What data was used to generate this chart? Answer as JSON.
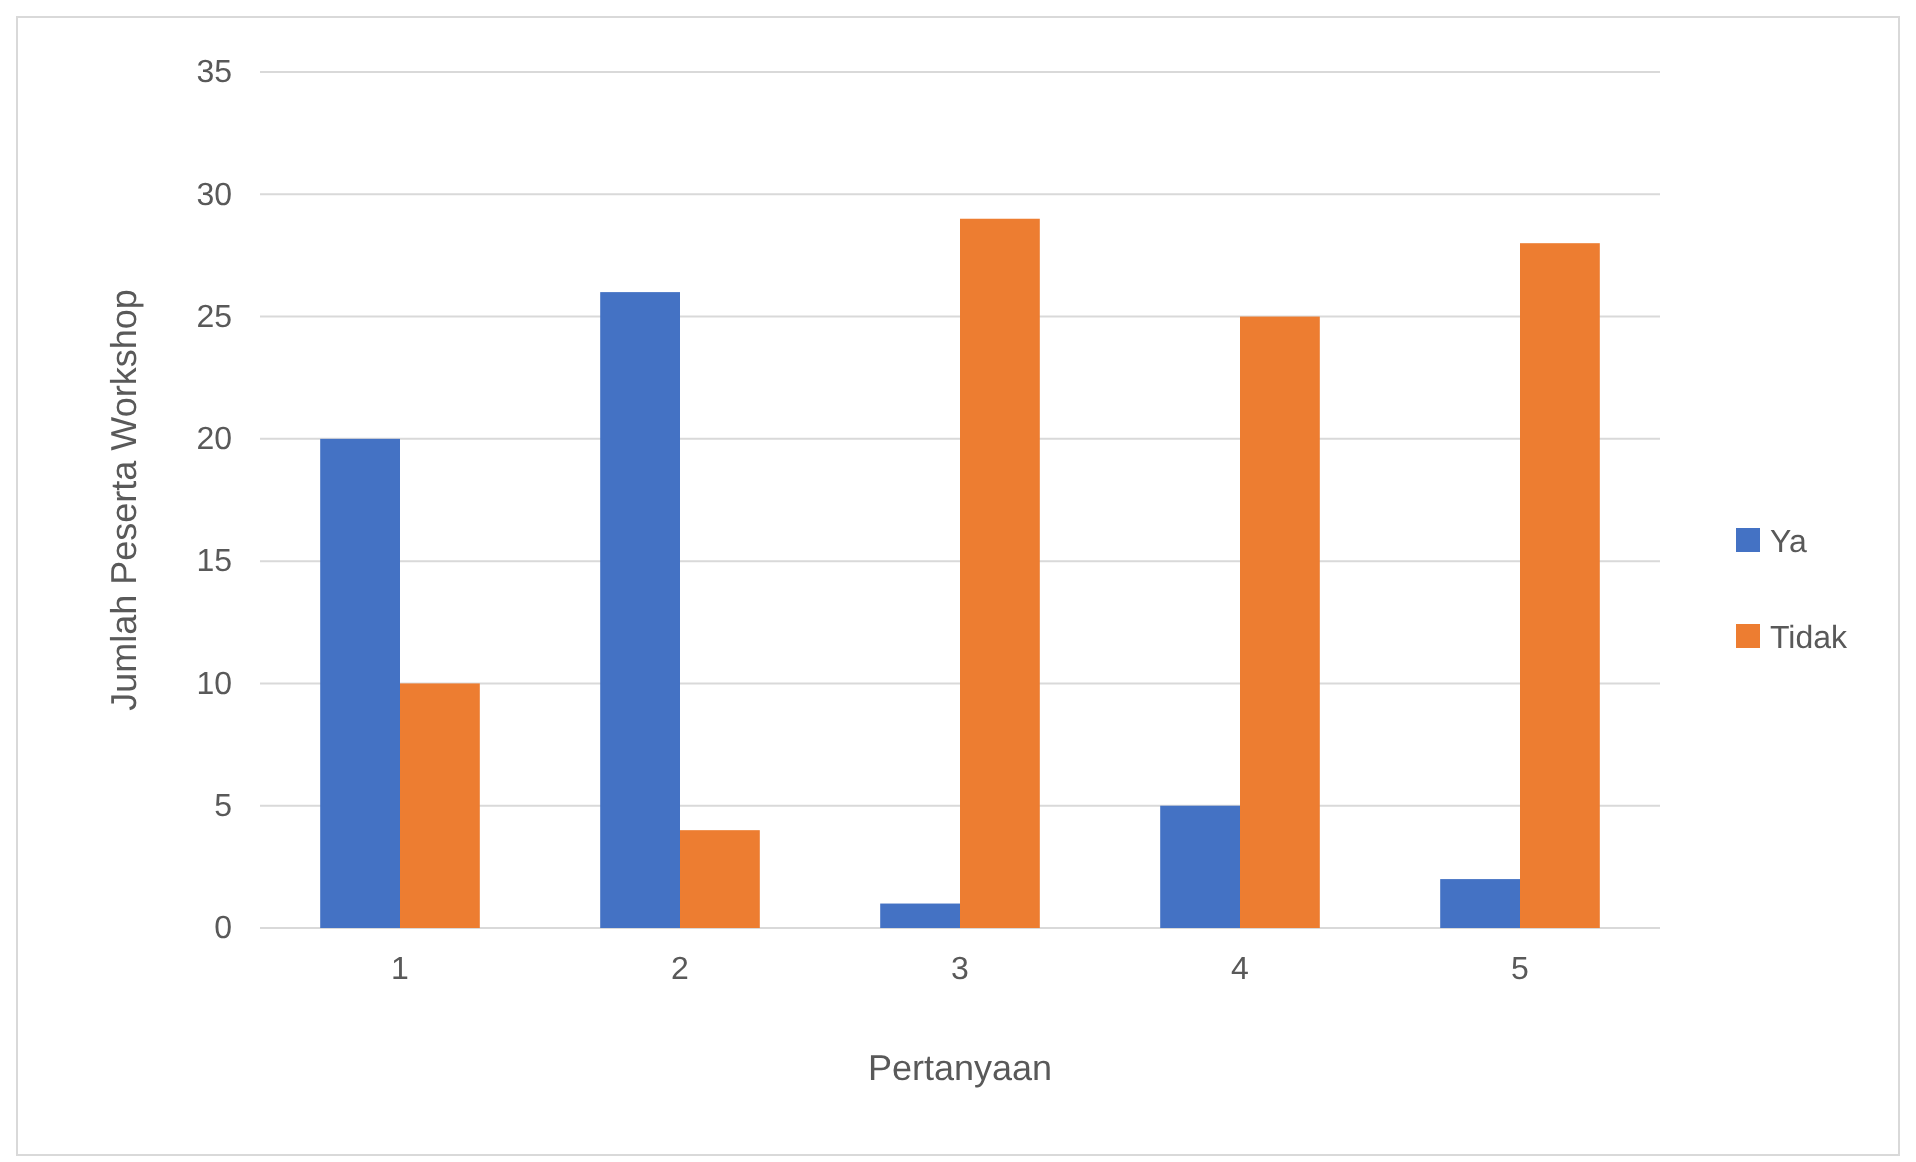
{
  "chart_data": {
    "type": "bar",
    "xlabel": "Pertanyaan",
    "ylabel": "Jumlah Peserta Workshop",
    "categories": [
      "1",
      "2",
      "3",
      "4",
      "5"
    ],
    "series": [
      {
        "name": "Ya",
        "color": "#4472c4",
        "values": [
          20,
          26,
          1,
          5,
          2
        ]
      },
      {
        "name": "Tidak",
        "color": "#ed7d31",
        "values": [
          10,
          4,
          29,
          25,
          28
        ]
      }
    ],
    "ylim": [
      0,
      35
    ],
    "yticks": [
      0,
      5,
      10,
      15,
      20,
      25,
      30,
      35
    ],
    "grid": "y",
    "legend": "right"
  }
}
